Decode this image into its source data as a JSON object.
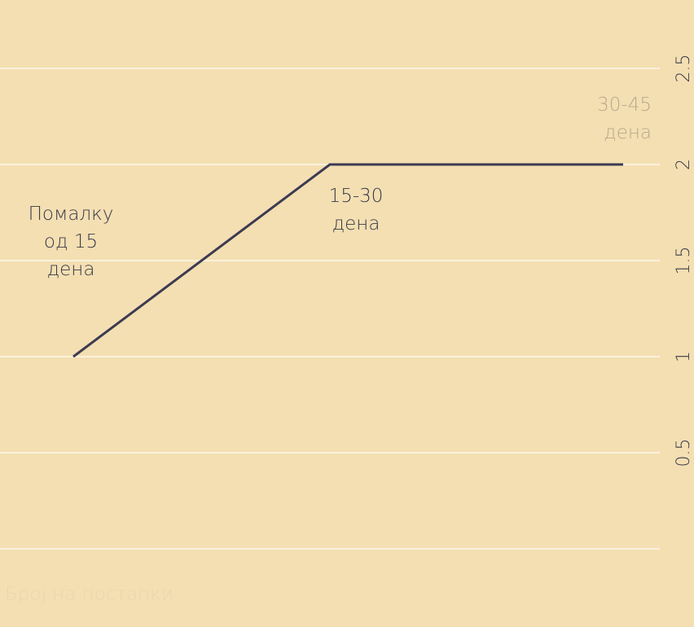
{
  "chart_data": {
    "type": "line",
    "xlabel": "Број на постапки",
    "ylabel": "",
    "ylim": [
      0,
      2.5
    ],
    "yticks": [
      "0.5",
      "1",
      "1.5",
      "2",
      "2.5"
    ],
    "grid": true,
    "categories": [
      [
        "Помалку",
        "од 15",
        "дена"
      ],
      [
        "15-30",
        "дена"
      ],
      [
        "30-45",
        "дена"
      ]
    ],
    "series": [
      {
        "values": [
          1,
          2,
          2
        ]
      }
    ],
    "colors": {
      "background": "#f4dfb2",
      "line": "#3b3b52",
      "grid": "#ffffff"
    }
  }
}
